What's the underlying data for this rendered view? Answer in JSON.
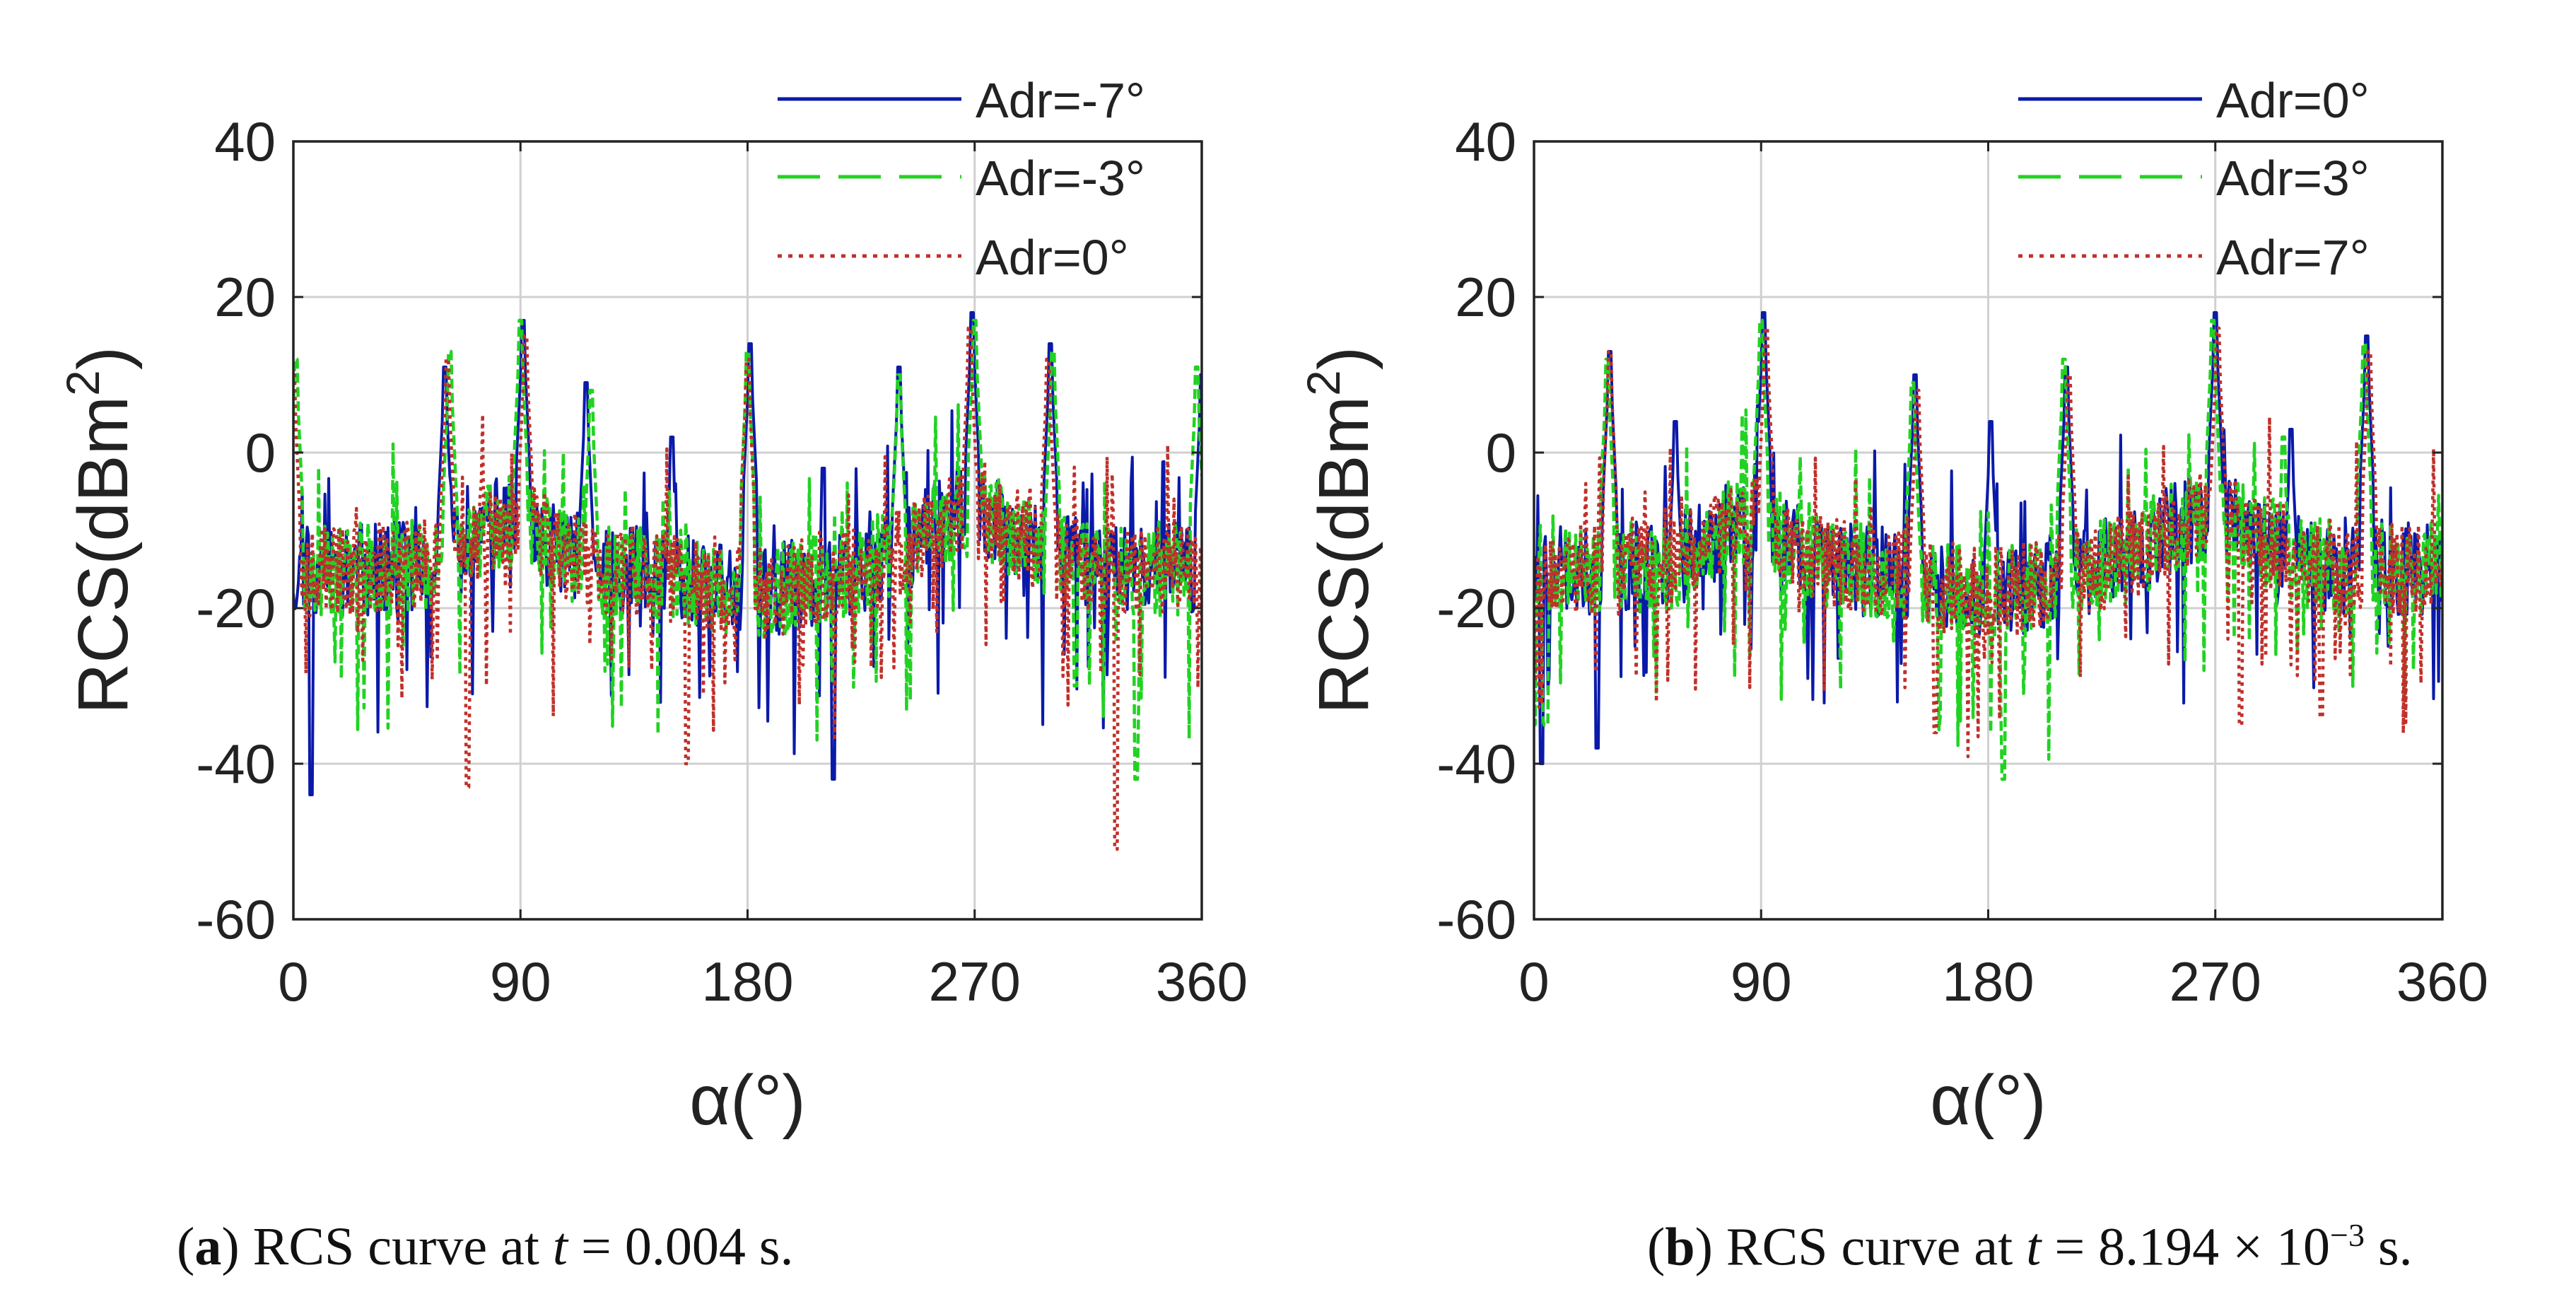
{
  "colors": {
    "series1": "#0a1aa8",
    "series2": "#22d222",
    "series3": "#c0302a",
    "grid": "#d0d0d0",
    "axis": "#222222"
  },
  "chart_data": [
    {
      "type": "line",
      "xlabel": "α(°)",
      "ylabel_base": "RCS(dBm",
      "ylabel_sup": "2",
      "ylabel_close": ")",
      "xlim": [
        0,
        360
      ],
      "ylim": [
        -60,
        40
      ],
      "xticks": [
        "0",
        "90",
        "180",
        "270",
        "360"
      ],
      "yticks": [
        "40",
        "20",
        "0",
        "-20",
        "-40",
        "-60"
      ],
      "grid": true,
      "legend_position": "top-right",
      "series": [
        {
          "name": "Adr=-7°",
          "style": "solid",
          "seed": 11,
          "peaks": [
            [
              60,
              11
            ],
            [
              91,
              17
            ],
            [
              116,
              9
            ],
            [
              150,
              2
            ],
            [
              181,
              14
            ],
            [
              210,
              -2
            ],
            [
              240,
              11
            ],
            [
              269,
              18
            ],
            [
              300,
              14
            ],
            [
              360,
              10
            ],
            [
              7,
              -44
            ],
            [
              214,
              -42
            ]
          ]
        },
        {
          "name": "Adr=-3°",
          "style": "dashed",
          "seed": 23,
          "peaks": [
            [
              1,
              12
            ],
            [
              62,
              13
            ],
            [
              90,
              17
            ],
            [
              118,
              8
            ],
            [
              180,
              13
            ],
            [
              240,
              10
            ],
            [
              270,
              17
            ],
            [
              301,
              13
            ],
            [
              358,
              11
            ],
            [
              334,
              -42
            ],
            [
              310,
              -30
            ]
          ]
        },
        {
          "name": "Adr=0°",
          "style": "dotted",
          "seed": 37,
          "peaks": [
            [
              0,
              10
            ],
            [
              61,
              12
            ],
            [
              92,
              15
            ],
            [
              180,
              12
            ],
            [
              268,
              16
            ],
            [
              299,
              12
            ],
            [
              69,
              -43
            ],
            [
              326,
              -51
            ],
            [
              156,
              -40
            ]
          ]
        }
      ],
      "caption": {
        "label": "a",
        "text_before": "RCS curve at ",
        "var": "t",
        "text_after": " = 0.004 s."
      }
    },
    {
      "type": "line",
      "xlabel": "α(°)",
      "ylabel_base": "RCS(dBm",
      "ylabel_sup": "2",
      "ylabel_close": ")",
      "xlim": [
        0,
        360
      ],
      "ylim": [
        -60,
        40
      ],
      "xticks": [
        "0",
        "90",
        "180",
        "270",
        "360"
      ],
      "yticks": [
        "40",
        "20",
        "0",
        "-20",
        "-40",
        "-60"
      ],
      "grid": true,
      "legend_position": "top-right",
      "series": [
        {
          "name": "Adr=0°",
          "style": "solid",
          "seed": 53,
          "peaks": [
            [
              30,
              13
            ],
            [
              56,
              4
            ],
            [
              91,
              18
            ],
            [
              151,
              10
            ],
            [
              181,
              4
            ],
            [
              211,
              11
            ],
            [
              270,
              18
            ],
            [
              300,
              3
            ],
            [
              330,
              15
            ],
            [
              3,
              -40
            ],
            [
              25,
              -38
            ]
          ]
        },
        {
          "name": "Adr=3°",
          "style": "dashed",
          "seed": 67,
          "peaks": [
            [
              29,
              12
            ],
            [
              90,
              17
            ],
            [
              150,
              9
            ],
            [
              210,
              12
            ],
            [
              269,
              17
            ],
            [
              297,
              2
            ],
            [
              329,
              14
            ],
            [
              186,
              -42
            ],
            [
              5,
              -35
            ]
          ]
        },
        {
          "name": "Adr=7°",
          "style": "dotted",
          "seed": 79,
          "peaks": [
            [
              30,
              13
            ],
            [
              92,
              16
            ],
            [
              152,
              8
            ],
            [
              212,
              10
            ],
            [
              271,
              16
            ],
            [
              331,
              13
            ],
            [
              159,
              -36
            ],
            [
              312,
              -34
            ],
            [
              280,
              -35
            ]
          ]
        }
      ],
      "caption": {
        "label": "b",
        "text_before": "RCS curve at ",
        "var": "t",
        "text_after": " = 8.194 × 10",
        "sup": "−3",
        "text_end": " s."
      }
    }
  ]
}
